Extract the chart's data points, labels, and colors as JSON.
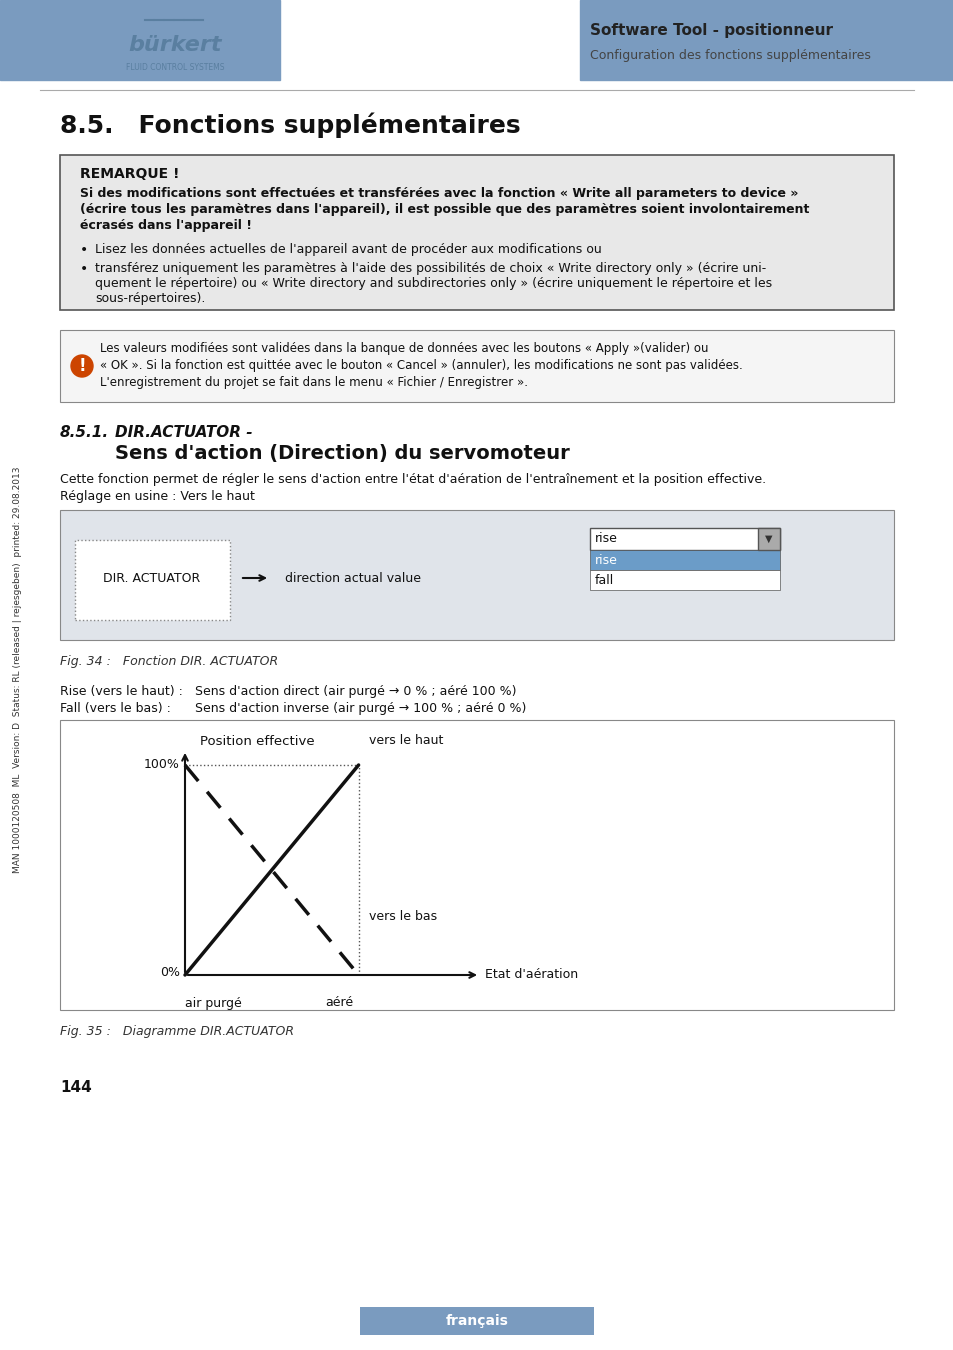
{
  "page_bg": "#ffffff",
  "header_bar_color": "#7a9bbf",
  "header_title": "Software Tool - positionneur",
  "header_subtitle": "Configuration des fonctions supplémentaires",
  "section_title": "8.5. Fonctions supplémentaires",
  "remarque_title": "REMARQUE !",
  "remarque_bold": "Si des modifications sont effectuées et transférées avec la fonction « Write all parameters to device »\n(écrire tous les paramètres dans l'appareil), il est possible que des paramètres soient involontairement\nécrasés dans l'appareil !",
  "bullet1": "Lisez les données actuelles de l'appareil avant de procéder aux modifications ou",
  "bullet2": "transférez uniquement les paramètres à l'aide des possibilités de choix « Write directory only » (écrire uni-\nquement le répertoire) ou « Write directory and subdirectories only » (écrire uniquement le répertoire et les\nsous-répertoires).",
  "note_text": "Les valeurs modifiées sont validées dans la banque de données avec les boutons « Apply »(valider) ou\n« OK ». Si la fonction est quittée avec le bouton « Cancel » (annuler), les modifications ne sont pas validées.\nL'enregistrement du projet se fait dans le menu « Fichier / Enregistrer ».",
  "subsection_title_italic": "DIR.ACTUATOR -",
  "subsection_title_bold": "Sens d'action (Direction) du servomoteur",
  "body_text1": "Cette fonction permet de régler le sens d'action entre l'état d'aération de l'entraînement et la position effective.",
  "body_text2": "Réglage en usine : Vers le haut",
  "fig34_caption": "Fig. 34 :   Fonction DIR. ACTUATOR",
  "rise_label": "Rise (vers le haut) :",
  "rise_desc": "Sens d'action direct (air purgé → 0 % ; aéré 100 %)",
  "fall_label": "Fall (vers le bas) :",
  "fall_desc": "Sens d'action inverse (air purgé → 100 % ; aéré 0 %)",
  "fig35_caption": "Fig. 35 :   Diagramme DIR.ACTUATOR",
  "page_number": "144",
  "footer_text": "français",
  "sidebar_text": "MAN 1000120508  ML  Version: D  Status: RL (released | rejesgeben)  printed: 29.08.2013"
}
